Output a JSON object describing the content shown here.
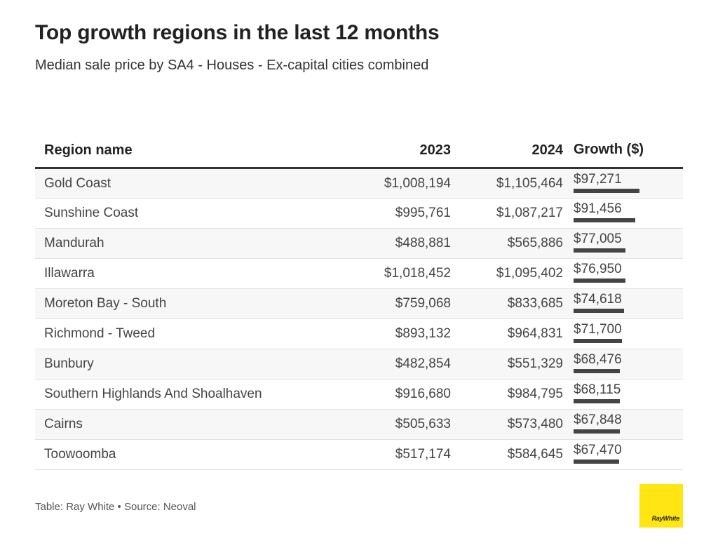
{
  "title": "Top growth regions in the last 12 months",
  "subtitle": "Median sale price by SA4 - Houses - Ex-capital cities combined",
  "footnote": "Table: Ray White • Source: Neoval",
  "logo_text": "RayWhite",
  "colors": {
    "bar": "#444444",
    "header_rule": "#333333",
    "logo": "#ffe512",
    "row_alt": "#f7f7f7"
  },
  "chart_data": {
    "type": "table",
    "columns": [
      "Region name",
      "2023",
      "2024",
      "Growth ($)"
    ],
    "rows": [
      {
        "region": "Gold Coast",
        "v2023": "$1,008,194",
        "v2024": "$1,105,464",
        "growth_label": "$97,271",
        "growth": 97271
      },
      {
        "region": "Sunshine Coast",
        "v2023": "$995,761",
        "v2024": "$1,087,217",
        "growth_label": "$91,456",
        "growth": 91456
      },
      {
        "region": "Mandurah",
        "v2023": "$488,881",
        "v2024": "$565,886",
        "growth_label": "$77,005",
        "growth": 77005
      },
      {
        "region": "Illawarra",
        "v2023": "$1,018,452",
        "v2024": "$1,095,402",
        "growth_label": "$76,950",
        "growth": 76950
      },
      {
        "region": "Moreton Bay - South",
        "v2023": "$759,068",
        "v2024": "$833,685",
        "growth_label": "$74,618",
        "growth": 74618
      },
      {
        "region": "Richmond - Tweed",
        "v2023": "$893,132",
        "v2024": "$964,831",
        "growth_label": "$71,700",
        "growth": 71700
      },
      {
        "region": "Bunbury",
        "v2023": "$482,854",
        "v2024": "$551,329",
        "growth_label": "$68,476",
        "growth": 68476
      },
      {
        "region": "Southern Highlands And Shoalhaven",
        "v2023": "$916,680",
        "v2024": "$984,795",
        "growth_label": "$68,115",
        "growth": 68115
      },
      {
        "region": "Cairns",
        "v2023": "$505,633",
        "v2024": "$573,480",
        "growth_label": "$67,848",
        "growth": 67848
      },
      {
        "region": "Toowoomba",
        "v2023": "$517,174",
        "v2024": "$584,645",
        "growth_label": "$67,470",
        "growth": 67470
      }
    ]
  }
}
